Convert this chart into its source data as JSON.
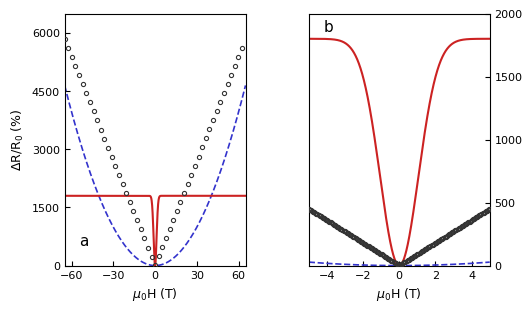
{
  "left_xlim": [
    -65,
    65
  ],
  "left_ylim": [
    0,
    6500
  ],
  "left_yticks": [
    0,
    1500,
    3000,
    4500,
    6000
  ],
  "left_xticks": [
    -60,
    -30,
    0,
    30,
    60
  ],
  "right_xlim": [
    -5,
    5
  ],
  "right_ylim": [
    0,
    2000
  ],
  "right_yticks": [
    0,
    500,
    1000,
    1500,
    2000
  ],
  "right_xticks": [
    -4,
    -2,
    0,
    2,
    4
  ],
  "xlabel_left": "$\\mu_0$H (T)",
  "xlabel_right": "$\\mu_0$H (T)",
  "ylabel": "$\\Delta$R/R$_0$ (%)",
  "label_a": "a",
  "label_b": "b",
  "color_circles": "#333333",
  "color_blue_dashed": "#3333cc",
  "color_red": "#cc2222"
}
